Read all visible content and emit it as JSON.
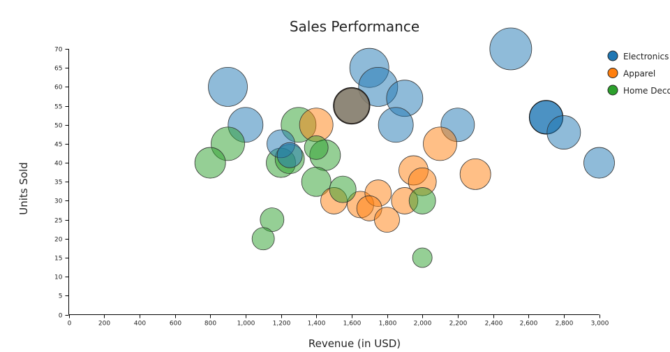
{
  "chart_data": {
    "type": "scatter",
    "title": "Sales Performance",
    "xlabel": "Revenue (in USD)",
    "ylabel": "Units Sold",
    "xlim": [
      0,
      3000
    ],
    "ylim": [
      0,
      70
    ],
    "x_ticks": [
      0,
      200,
      400,
      600,
      800,
      1000,
      1200,
      1400,
      1600,
      1800,
      2000,
      2200,
      2400,
      2600,
      2800,
      3000
    ],
    "x_tick_labels": [
      "0",
      "200",
      "400",
      "600",
      "800",
      "1,000",
      "1,200",
      "1,400",
      "1,600",
      "1,800",
      "2,000",
      "2,200",
      "2,400",
      "2,600",
      "2,800",
      "3,000"
    ],
    "y_ticks": [
      0,
      5,
      10,
      15,
      20,
      25,
      30,
      35,
      40,
      45,
      50,
      55,
      60,
      65,
      70
    ],
    "y_tick_labels": [
      "0",
      "5",
      "10",
      "15",
      "20",
      "25",
      "30",
      "35",
      "40",
      "45",
      "50",
      "55",
      "60",
      "65",
      "70"
    ],
    "grid": false,
    "legend_position": "right",
    "size_encoding": "bubble size",
    "series": [
      {
        "name": "Electronics",
        "color": "#1f77b4",
        "points": [
          {
            "x": 900,
            "y": 60,
            "size": 56
          },
          {
            "x": 1000,
            "y": 50,
            "size": 50
          },
          {
            "x": 1200,
            "y": 45,
            "size": 40
          },
          {
            "x": 1250,
            "y": 42,
            "size": 36
          },
          {
            "x": 1600,
            "y": 55,
            "size": 50
          },
          {
            "x": 1700,
            "y": 65,
            "size": 56
          },
          {
            "x": 1750,
            "y": 60,
            "size": 56
          },
          {
            "x": 1850,
            "y": 50,
            "size": 50
          },
          {
            "x": 1900,
            "y": 57,
            "size": 52
          },
          {
            "x": 2200,
            "y": 50,
            "size": 48
          },
          {
            "x": 2500,
            "y": 70,
            "size": 60
          },
          {
            "x": 2700,
            "y": 52,
            "size": 48,
            "highlight": true
          },
          {
            "x": 2800,
            "y": 48,
            "size": 48
          },
          {
            "x": 3000,
            "y": 40,
            "size": 44
          }
        ]
      },
      {
        "name": "Apparel",
        "color": "#ff7f0e",
        "points": [
          {
            "x": 1400,
            "y": 50,
            "size": 48
          },
          {
            "x": 1500,
            "y": 30,
            "size": 38
          },
          {
            "x": 1600,
            "y": 55,
            "size": 52,
            "highlight": true
          },
          {
            "x": 1650,
            "y": 29,
            "size": 38
          },
          {
            "x": 1700,
            "y": 28,
            "size": 36
          },
          {
            "x": 1750,
            "y": 32,
            "size": 38
          },
          {
            "x": 1800,
            "y": 25,
            "size": 36
          },
          {
            "x": 1900,
            "y": 30,
            "size": 38
          },
          {
            "x": 1950,
            "y": 38,
            "size": 42
          },
          {
            "x": 2000,
            "y": 35,
            "size": 40
          },
          {
            "x": 2100,
            "y": 45,
            "size": 48
          },
          {
            "x": 2300,
            "y": 37,
            "size": 44
          }
        ]
      },
      {
        "name": "Home Decor",
        "color": "#2ca02c",
        "points": [
          {
            "x": 800,
            "y": 40,
            "size": 44
          },
          {
            "x": 900,
            "y": 45,
            "size": 48
          },
          {
            "x": 1100,
            "y": 20,
            "size": 32
          },
          {
            "x": 1150,
            "y": 25,
            "size": 34
          },
          {
            "x": 1200,
            "y": 40,
            "size": 42
          },
          {
            "x": 1250,
            "y": 41,
            "size": 42
          },
          {
            "x": 1300,
            "y": 50,
            "size": 50
          },
          {
            "x": 1400,
            "y": 35,
            "size": 42
          },
          {
            "x": 1400,
            "y": 44,
            "size": 34
          },
          {
            "x": 1450,
            "y": 42,
            "size": 44
          },
          {
            "x": 1550,
            "y": 33,
            "size": 38
          },
          {
            "x": 2000,
            "y": 30,
            "size": 38
          },
          {
            "x": 2000,
            "y": 15,
            "size": 28
          }
        ]
      }
    ]
  }
}
